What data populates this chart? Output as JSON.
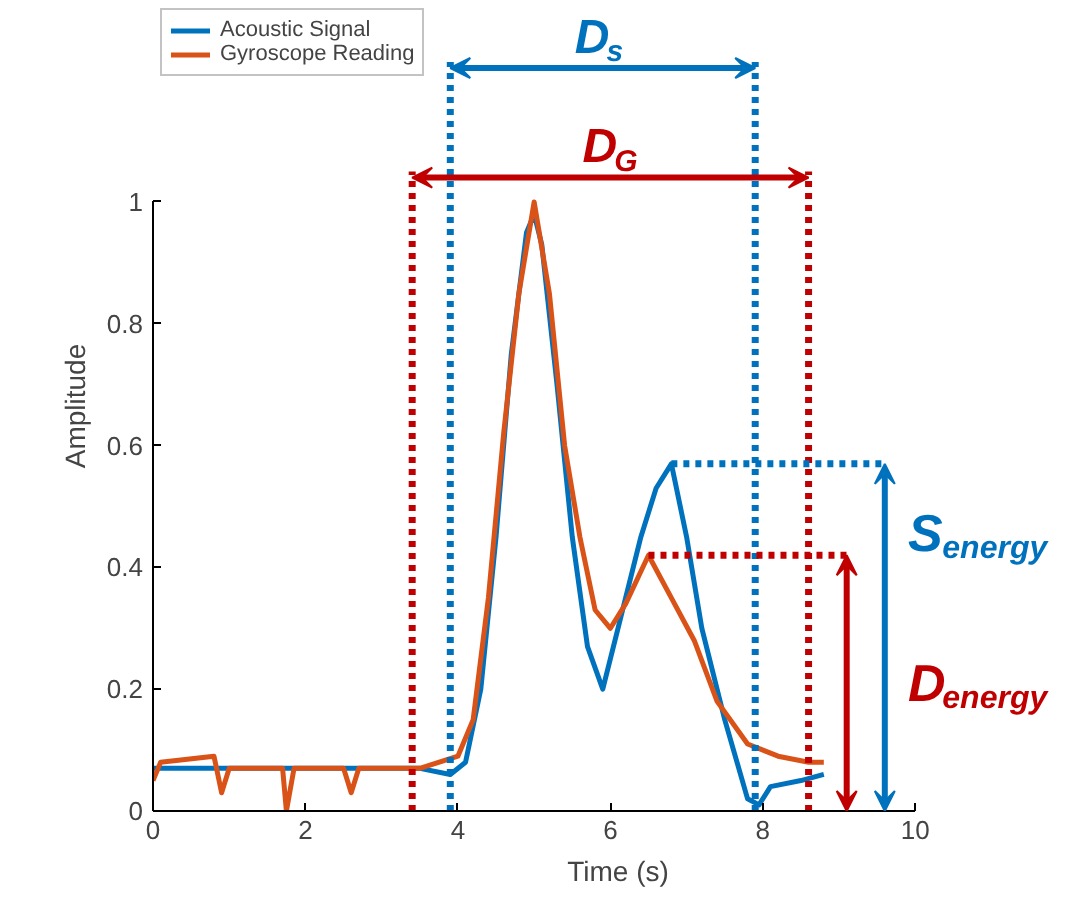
{
  "chart_data": {
    "type": "line",
    "xlabel": "Time (s)",
    "ylabel": "Amplitude",
    "xlim": [
      0,
      10
    ],
    "ylim": [
      0,
      1
    ],
    "xticks": [
      0,
      2,
      4,
      6,
      8,
      10
    ],
    "yticks": [
      0,
      0.2,
      0.4,
      0.6,
      0.8,
      1
    ],
    "grid": false,
    "legend": "top left",
    "line_style": "solid",
    "marker": "none",
    "series": [
      {
        "name": "Acoustic Signal",
        "color": "#0072bd",
        "x": [
          0,
          0.5,
          1,
          1.5,
          2,
          2.5,
          3,
          3.5,
          3.9,
          4.1,
          4.3,
          4.5,
          4.7,
          4.9,
          5.0,
          5.1,
          5.3,
          5.5,
          5.7,
          5.9,
          6.1,
          6.4,
          6.6,
          6.8,
          7.0,
          7.2,
          7.5,
          7.8,
          7.95,
          8.1,
          8.5,
          8.8
        ],
        "values": [
          0.07,
          0.07,
          0.07,
          0.07,
          0.07,
          0.07,
          0.07,
          0.07,
          0.06,
          0.08,
          0.2,
          0.45,
          0.75,
          0.95,
          0.98,
          0.93,
          0.7,
          0.45,
          0.27,
          0.2,
          0.3,
          0.45,
          0.53,
          0.57,
          0.45,
          0.3,
          0.15,
          0.02,
          0.01,
          0.04,
          0.05,
          0.06
        ]
      },
      {
        "name": "Gyroscope Reading",
        "color": "#d95319",
        "x": [
          0,
          0.1,
          0.8,
          0.9,
          1.0,
          1.7,
          1.75,
          1.85,
          2.5,
          2.6,
          2.7,
          3.5,
          4.0,
          4.2,
          4.4,
          4.6,
          4.8,
          5.0,
          5.2,
          5.4,
          5.6,
          5.8,
          6.0,
          6.2,
          6.5,
          6.8,
          7.1,
          7.4,
          7.8,
          8.2,
          8.6,
          8.8
        ],
        "values": [
          0.05,
          0.08,
          0.09,
          0.03,
          0.07,
          0.07,
          0.0,
          0.07,
          0.07,
          0.03,
          0.07,
          0.07,
          0.09,
          0.15,
          0.35,
          0.62,
          0.85,
          1.0,
          0.85,
          0.6,
          0.45,
          0.33,
          0.3,
          0.34,
          0.42,
          0.35,
          0.28,
          0.18,
          0.11,
          0.09,
          0.08,
          0.08
        ]
      }
    ],
    "ref_lines": [
      {
        "axis": "x",
        "value": 3.9,
        "color": "#0072bd",
        "line_style": "dotted"
      },
      {
        "axis": "x",
        "value": 7.9,
        "color": "#0072bd",
        "line_style": "dotted"
      },
      {
        "axis": "x",
        "value": 3.4,
        "color": "#c00000",
        "line_style": "dotted"
      },
      {
        "axis": "x",
        "value": 8.6,
        "color": "#c00000",
        "line_style": "dotted"
      },
      {
        "axis": "y",
        "value": 0.57,
        "color": "#0072bd",
        "line_style": "dotted"
      },
      {
        "axis": "y",
        "value": 0.42,
        "color": "#c00000",
        "line_style": "dotted"
      }
    ],
    "annotations": [
      "D$_{s}$",
      "D$_{G}$",
      "S$_{energy}$",
      "D$_{energy}$"
    ]
  }
}
